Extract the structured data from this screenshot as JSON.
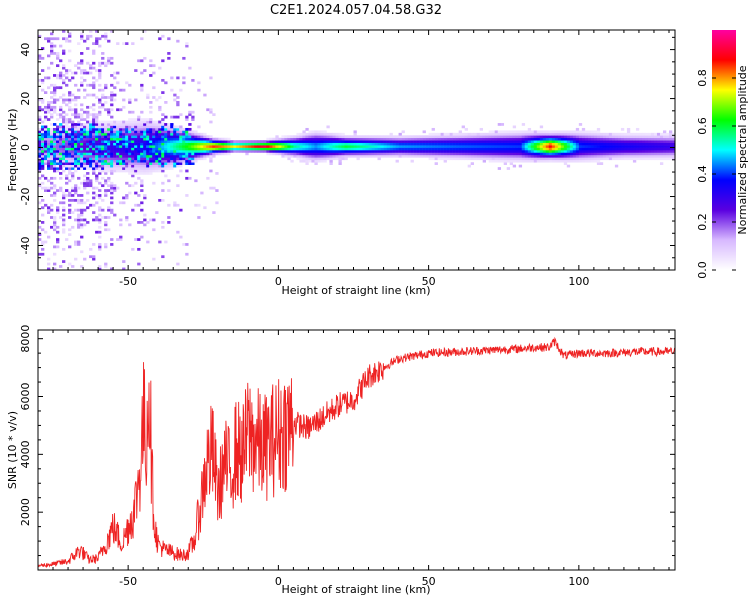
{
  "title": "C2E1.2024.057.04.58.G32",
  "chart_data": [
    {
      "type": "heatmap",
      "xlabel": "Height of straight line (km)",
      "ylabel": "Frequency (Hz)",
      "xlim": [
        -80,
        132
      ],
      "ylim": [
        -50,
        48
      ],
      "xticks": [
        -50,
        0,
        50,
        100
      ],
      "yticks": [
        -40,
        -20,
        0,
        20,
        40
      ],
      "colorbar": {
        "label": "Normalized spectral amplitude",
        "range": [
          0.0,
          1.0
        ],
        "ticks": [
          0.0,
          0.2,
          0.4,
          0.6,
          0.8
        ],
        "colormap": [
          "#ffffff",
          "#d7b8ff",
          "#5a00e0",
          "#0000ff",
          "#00ffff",
          "#00ff00",
          "#ffff00",
          "#ff0000",
          "#ff00a0"
        ]
      },
      "ridge": [
        {
          "x": -75,
          "width": 9,
          "amp": 0.18
        },
        {
          "x": -60,
          "width": 10,
          "amp": 0.3
        },
        {
          "x": -45,
          "width": 11,
          "amp": 0.35
        },
        {
          "x": -30,
          "width": 6,
          "amp": 0.65
        },
        {
          "x": -22,
          "width": 3,
          "amp": 0.85
        },
        {
          "x": -15,
          "width": 2,
          "amp": 0.75
        },
        {
          "x": -5,
          "width": 2,
          "amp": 0.92
        },
        {
          "x": 5,
          "width": 4,
          "amp": 0.55
        },
        {
          "x": 12,
          "width": 6,
          "amp": 0.45
        },
        {
          "x": 22,
          "width": 4,
          "amp": 0.6
        },
        {
          "x": 40,
          "width": 4,
          "amp": 0.45
        },
        {
          "x": 60,
          "width": 5,
          "amp": 0.42
        },
        {
          "x": 80,
          "width": 6,
          "amp": 0.4
        },
        {
          "x": 90,
          "width": 5,
          "amp": 0.88
        },
        {
          "x": 100,
          "width": 6,
          "amp": 0.4
        },
        {
          "x": 115,
          "width": 5,
          "amp": 0.35
        },
        {
          "x": 132,
          "width": 5,
          "amp": 0.3
        }
      ]
    },
    {
      "type": "line",
      "xlabel": "Height of straight line (km)",
      "ylabel": "SNR (10 * v/v)",
      "xlim": [
        -80,
        132
      ],
      "ylim": [
        0,
        8300
      ],
      "xticks": [
        -50,
        0,
        50,
        100
      ],
      "yticks": [
        2000,
        4000,
        6000,
        8000
      ],
      "color": "#ee2222",
      "series": [
        {
          "x": [
            -80,
            -75,
            -70,
            -66,
            -63,
            -60,
            -57,
            -55,
            -52,
            -50,
            -48,
            -46,
            -45,
            -44,
            -43,
            -42,
            -41,
            -40,
            -38,
            -35,
            -32,
            -30,
            -28,
            -26,
            -24,
            -22,
            -20,
            -18,
            -16,
            -14,
            -12,
            -10,
            -8,
            -5,
            0,
            5,
            10,
            15,
            20,
            25,
            30,
            35,
            40,
            50,
            60,
            70,
            80,
            85,
            90,
            92,
            95,
            100,
            110,
            120,
            132
          ],
          "y": [
            150,
            200,
            300,
            700,
            350,
            400,
            1000,
            1500,
            900,
            1500,
            2000,
            3500,
            5200,
            4500,
            6800,
            3000,
            1400,
            900,
            700,
            600,
            500,
            600,
            1000,
            2200,
            3600,
            4100,
            2600,
            3700,
            3400,
            4200,
            3900,
            4800,
            4500,
            4200,
            4700,
            5100,
            4900,
            5300,
            5700,
            5900,
            6700,
            7000,
            7300,
            7500,
            7550,
            7600,
            7650,
            7700,
            7700,
            7900,
            7400,
            7500,
            7500,
            7550,
            7550
          ]
        }
      ]
    }
  ]
}
